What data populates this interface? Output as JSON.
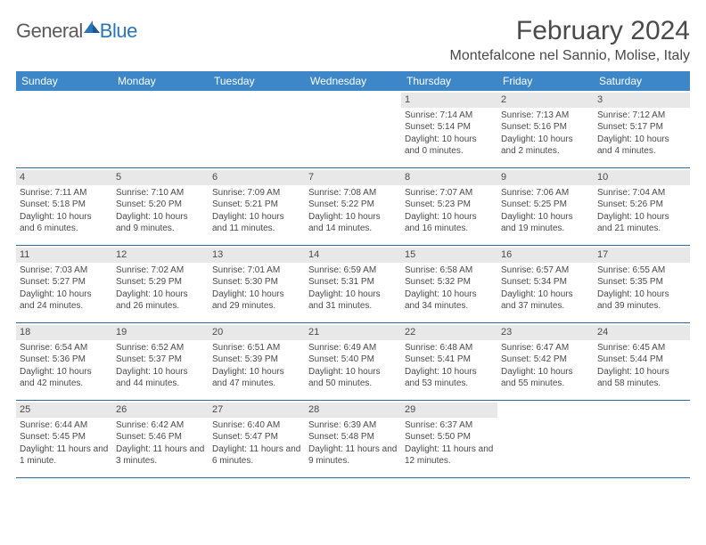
{
  "brand": {
    "part1": "General",
    "part2": "Blue"
  },
  "title": "February 2024",
  "location": "Montefalcone nel Sannio, Molise, Italy",
  "colors": {
    "header_bg": "#3d87c9",
    "header_text": "#ffffff",
    "daynum_bg": "#e8e8e8",
    "week_border": "#2d6aa3",
    "body_text": "#4a4a4a",
    "logo_blue": "#2a74b8"
  },
  "days_of_week": [
    "Sunday",
    "Monday",
    "Tuesday",
    "Wednesday",
    "Thursday",
    "Friday",
    "Saturday"
  ],
  "weeks": [
    [
      null,
      null,
      null,
      null,
      {
        "n": "1",
        "sr": "Sunrise: 7:14 AM",
        "ss": "Sunset: 5:14 PM",
        "dl": "Daylight: 10 hours and 0 minutes."
      },
      {
        "n": "2",
        "sr": "Sunrise: 7:13 AM",
        "ss": "Sunset: 5:16 PM",
        "dl": "Daylight: 10 hours and 2 minutes."
      },
      {
        "n": "3",
        "sr": "Sunrise: 7:12 AM",
        "ss": "Sunset: 5:17 PM",
        "dl": "Daylight: 10 hours and 4 minutes."
      }
    ],
    [
      {
        "n": "4",
        "sr": "Sunrise: 7:11 AM",
        "ss": "Sunset: 5:18 PM",
        "dl": "Daylight: 10 hours and 6 minutes."
      },
      {
        "n": "5",
        "sr": "Sunrise: 7:10 AM",
        "ss": "Sunset: 5:20 PM",
        "dl": "Daylight: 10 hours and 9 minutes."
      },
      {
        "n": "6",
        "sr": "Sunrise: 7:09 AM",
        "ss": "Sunset: 5:21 PM",
        "dl": "Daylight: 10 hours and 11 minutes."
      },
      {
        "n": "7",
        "sr": "Sunrise: 7:08 AM",
        "ss": "Sunset: 5:22 PM",
        "dl": "Daylight: 10 hours and 14 minutes."
      },
      {
        "n": "8",
        "sr": "Sunrise: 7:07 AM",
        "ss": "Sunset: 5:23 PM",
        "dl": "Daylight: 10 hours and 16 minutes."
      },
      {
        "n": "9",
        "sr": "Sunrise: 7:06 AM",
        "ss": "Sunset: 5:25 PM",
        "dl": "Daylight: 10 hours and 19 minutes."
      },
      {
        "n": "10",
        "sr": "Sunrise: 7:04 AM",
        "ss": "Sunset: 5:26 PM",
        "dl": "Daylight: 10 hours and 21 minutes."
      }
    ],
    [
      {
        "n": "11",
        "sr": "Sunrise: 7:03 AM",
        "ss": "Sunset: 5:27 PM",
        "dl": "Daylight: 10 hours and 24 minutes."
      },
      {
        "n": "12",
        "sr": "Sunrise: 7:02 AM",
        "ss": "Sunset: 5:29 PM",
        "dl": "Daylight: 10 hours and 26 minutes."
      },
      {
        "n": "13",
        "sr": "Sunrise: 7:01 AM",
        "ss": "Sunset: 5:30 PM",
        "dl": "Daylight: 10 hours and 29 minutes."
      },
      {
        "n": "14",
        "sr": "Sunrise: 6:59 AM",
        "ss": "Sunset: 5:31 PM",
        "dl": "Daylight: 10 hours and 31 minutes."
      },
      {
        "n": "15",
        "sr": "Sunrise: 6:58 AM",
        "ss": "Sunset: 5:32 PM",
        "dl": "Daylight: 10 hours and 34 minutes."
      },
      {
        "n": "16",
        "sr": "Sunrise: 6:57 AM",
        "ss": "Sunset: 5:34 PM",
        "dl": "Daylight: 10 hours and 37 minutes."
      },
      {
        "n": "17",
        "sr": "Sunrise: 6:55 AM",
        "ss": "Sunset: 5:35 PM",
        "dl": "Daylight: 10 hours and 39 minutes."
      }
    ],
    [
      {
        "n": "18",
        "sr": "Sunrise: 6:54 AM",
        "ss": "Sunset: 5:36 PM",
        "dl": "Daylight: 10 hours and 42 minutes."
      },
      {
        "n": "19",
        "sr": "Sunrise: 6:52 AM",
        "ss": "Sunset: 5:37 PM",
        "dl": "Daylight: 10 hours and 44 minutes."
      },
      {
        "n": "20",
        "sr": "Sunrise: 6:51 AM",
        "ss": "Sunset: 5:39 PM",
        "dl": "Daylight: 10 hours and 47 minutes."
      },
      {
        "n": "21",
        "sr": "Sunrise: 6:49 AM",
        "ss": "Sunset: 5:40 PM",
        "dl": "Daylight: 10 hours and 50 minutes."
      },
      {
        "n": "22",
        "sr": "Sunrise: 6:48 AM",
        "ss": "Sunset: 5:41 PM",
        "dl": "Daylight: 10 hours and 53 minutes."
      },
      {
        "n": "23",
        "sr": "Sunrise: 6:47 AM",
        "ss": "Sunset: 5:42 PM",
        "dl": "Daylight: 10 hours and 55 minutes."
      },
      {
        "n": "24",
        "sr": "Sunrise: 6:45 AM",
        "ss": "Sunset: 5:44 PM",
        "dl": "Daylight: 10 hours and 58 minutes."
      }
    ],
    [
      {
        "n": "25",
        "sr": "Sunrise: 6:44 AM",
        "ss": "Sunset: 5:45 PM",
        "dl": "Daylight: 11 hours and 1 minute."
      },
      {
        "n": "26",
        "sr": "Sunrise: 6:42 AM",
        "ss": "Sunset: 5:46 PM",
        "dl": "Daylight: 11 hours and 3 minutes."
      },
      {
        "n": "27",
        "sr": "Sunrise: 6:40 AM",
        "ss": "Sunset: 5:47 PM",
        "dl": "Daylight: 11 hours and 6 minutes."
      },
      {
        "n": "28",
        "sr": "Sunrise: 6:39 AM",
        "ss": "Sunset: 5:48 PM",
        "dl": "Daylight: 11 hours and 9 minutes."
      },
      {
        "n": "29",
        "sr": "Sunrise: 6:37 AM",
        "ss": "Sunset: 5:50 PM",
        "dl": "Daylight: 11 hours and 12 minutes."
      },
      null,
      null
    ]
  ]
}
